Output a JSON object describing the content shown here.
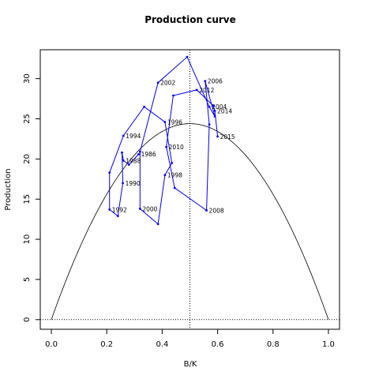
{
  "chart_data": {
    "type": "line",
    "title": "Production curve",
    "xlabel": "B/K",
    "ylabel": "Production",
    "xlim": [
      -0.04,
      1.04
    ],
    "ylim": [
      -1.2,
      33.6
    ],
    "xticks": [
      "0.0",
      "0.2",
      "0.4",
      "0.6",
      "0.8",
      "1.0"
    ],
    "yticks": [
      "0",
      "5",
      "10",
      "15",
      "20",
      "25",
      "30"
    ],
    "reference_lines": {
      "bmsy": 0.5,
      "zero": 0
    },
    "colors": {
      "series": "#0000ff",
      "curve": "#000000",
      "reference": "#000000"
    },
    "production_curve": {
      "r": 1.0,
      "K": 97.6,
      "peak": 24.4
    },
    "series": [
      {
        "points": [
          {
            "year": "1986",
            "x": 0.315,
            "y": 20.6
          },
          {
            "year": "",
            "x": 0.28,
            "y": 19.3
          },
          {
            "year": "1988",
            "x": 0.26,
            "y": 19.8
          },
          {
            "year": "",
            "x": 0.255,
            "y": 20.8
          },
          {
            "year": "1990",
            "x": 0.258,
            "y": 17.0
          },
          {
            "year": "",
            "x": 0.24,
            "y": 12.9
          },
          {
            "year": "1992",
            "x": 0.21,
            "y": 13.7
          },
          {
            "year": "",
            "x": 0.21,
            "y": 18.3
          },
          {
            "year": "1994",
            "x": 0.26,
            "y": 22.9
          },
          {
            "year": "",
            "x": 0.335,
            "y": 26.5
          },
          {
            "year": "1996",
            "x": 0.41,
            "y": 24.6
          },
          {
            "year": "",
            "x": 0.435,
            "y": 19.5
          },
          {
            "year": "1998",
            "x": 0.41,
            "y": 18.0
          },
          {
            "year": "",
            "x": 0.385,
            "y": 11.9
          },
          {
            "year": "2000",
            "x": 0.32,
            "y": 13.8
          },
          {
            "year": "",
            "x": 0.32,
            "y": 20.9
          },
          {
            "year": "2002",
            "x": 0.385,
            "y": 29.5
          },
          {
            "year": "",
            "x": 0.49,
            "y": 32.7
          },
          {
            "year": "2004",
            "x": 0.57,
            "y": 26.5
          },
          {
            "year": "",
            "x": 0.59,
            "y": 25.3
          },
          {
            "year": "2006",
            "x": 0.555,
            "y": 29.7
          },
          {
            "year": "",
            "x": 0.57,
            "y": 24.3
          },
          {
            "year": "2008",
            "x": 0.56,
            "y": 13.6
          },
          {
            "year": "",
            "x": 0.445,
            "y": 16.4
          },
          {
            "year": "2010",
            "x": 0.415,
            "y": 21.5
          },
          {
            "year": "",
            "x": 0.44,
            "y": 27.9
          },
          {
            "year": "2012",
            "x": 0.525,
            "y": 28.6
          },
          {
            "year": "",
            "x": 0.585,
            "y": 26.6
          },
          {
            "year": "2014",
            "x": 0.59,
            "y": 26.0
          },
          {
            "year": "2015",
            "x": 0.6,
            "y": 22.8
          }
        ]
      }
    ]
  }
}
